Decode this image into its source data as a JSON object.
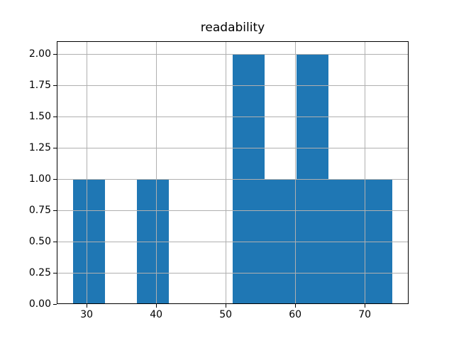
{
  "chart_data": {
    "type": "bar",
    "kind": "histogram",
    "title": "readability",
    "bin_edges": [
      28.0,
      32.6,
      37.2,
      41.8,
      46.4,
      51.0,
      55.6,
      60.2,
      64.8,
      69.4,
      74.0
    ],
    "counts": [
      1,
      0,
      1,
      0,
      0,
      2,
      1,
      2,
      1,
      1
    ],
    "xlim": [
      25.7,
      76.3
    ],
    "ylim": [
      0,
      2.1
    ],
    "xticks": [
      30,
      40,
      50,
      60,
      70
    ],
    "xtick_labels": [
      "30",
      "40",
      "50",
      "60",
      "70"
    ],
    "yticks": [
      0,
      0.25,
      0.5,
      0.75,
      1.0,
      1.25,
      1.5,
      1.75,
      2.0
    ],
    "ytick_labels": [
      "0.00",
      "0.25",
      "0.50",
      "0.75",
      "1.00",
      "1.25",
      "1.50",
      "1.75",
      "2.00"
    ],
    "grid": true,
    "grid_over_bars": true,
    "xlabel": "",
    "ylabel": "",
    "legend": null,
    "colors": {
      "bar_fill": "#1f77b4",
      "grid": "#b0b0b0",
      "spine": "#000000",
      "text": "#000000",
      "background": "#ffffff"
    }
  }
}
